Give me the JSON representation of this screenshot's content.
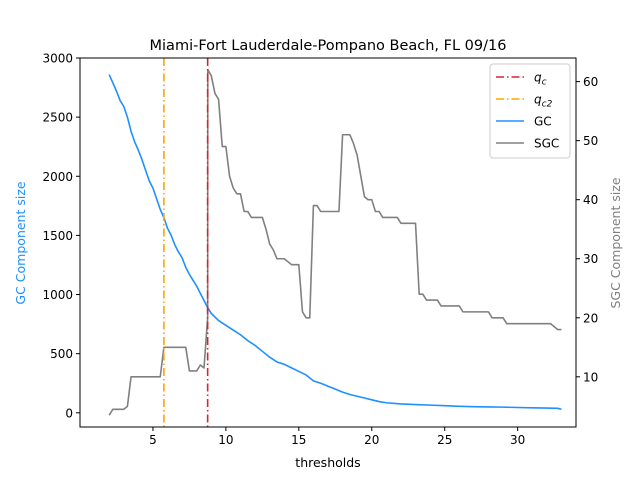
{
  "chart_data": {
    "type": "line",
    "title": "Miami-Fort Lauderdale-Pompano Beach, FL 09/16",
    "xlabel": "thresholds",
    "ylabel_left": "GC Component size",
    "ylabel_right": "SGC Component size",
    "xlim": [
      0,
      34
    ],
    "ylim_left": [
      -120,
      3000
    ],
    "ylim_right": [
      1.5,
      64
    ],
    "xticks": [
      5,
      10,
      15,
      20,
      25,
      30
    ],
    "yticks_left": [
      0,
      500,
      1000,
      1500,
      2000,
      2500,
      3000
    ],
    "yticks_right": [
      10,
      20,
      30,
      40,
      50,
      60
    ],
    "legend_position": "top-right",
    "colors": {
      "qc": "#d62728",
      "qc2": "#ffa500",
      "gc": "#1e90ff",
      "sgc": "#808080",
      "left_label": "#1e90ff",
      "right_label": "#808080"
    },
    "vlines": [
      {
        "name": "q_c",
        "label_main": "q",
        "label_sub": "c",
        "x": 8.75,
        "color": "#d62728"
      },
      {
        "name": "q_c2",
        "label_main": "q",
        "label_sub": "c2",
        "x": 5.75,
        "color": "#ffa500"
      }
    ],
    "series": [
      {
        "name": "GC",
        "axis": "left",
        "color": "#1e90ff",
        "x": [
          2,
          2.25,
          2.5,
          2.75,
          3,
          3.25,
          3.5,
          3.75,
          4,
          4.25,
          4.5,
          4.75,
          5,
          5.25,
          5.5,
          5.75,
          6,
          6.25,
          6.5,
          6.75,
          7,
          7.25,
          7.5,
          7.75,
          8,
          8.25,
          8.5,
          8.75,
          9,
          9.25,
          9.5,
          9.75,
          10,
          10.5,
          11,
          11.5,
          12,
          12.5,
          13,
          13.5,
          14,
          14.5,
          15,
          15.5,
          16,
          16.5,
          17,
          17.5,
          18,
          18.5,
          19,
          19.5,
          20,
          20.5,
          21,
          22,
          23,
          24,
          25,
          26,
          27,
          28,
          29,
          30,
          31,
          32,
          32.75,
          33
        ],
        "y": [
          2860,
          2790,
          2720,
          2640,
          2590,
          2500,
          2380,
          2290,
          2220,
          2140,
          2050,
          1960,
          1900,
          1810,
          1720,
          1650,
          1560,
          1500,
          1420,
          1360,
          1310,
          1230,
          1170,
          1120,
          1070,
          1010,
          950,
          890,
          840,
          810,
          780,
          760,
          740,
          700,
          660,
          610,
          570,
          520,
          470,
          430,
          410,
          380,
          350,
          320,
          270,
          250,
          225,
          200,
          175,
          155,
          140,
          125,
          110,
          95,
          85,
          75,
          70,
          65,
          60,
          55,
          52,
          50,
          48,
          45,
          42,
          40,
          38,
          30
        ]
      },
      {
        "name": "SGC",
        "axis": "right",
        "color": "#808080",
        "x": [
          2,
          2.25,
          3,
          3.25,
          3.5,
          5.5,
          5.75,
          7.25,
          7.5,
          8,
          8.25,
          8.5,
          8.75,
          8.76,
          9,
          9.25,
          9.5,
          9.75,
          10,
          10.25,
          10.5,
          10.75,
          11,
          11.25,
          11.5,
          11.75,
          12,
          12.5,
          12.75,
          13,
          13.25,
          13.5,
          14,
          14.25,
          14.5,
          15,
          15.25,
          15.5,
          15.75,
          16,
          16.25,
          16.5,
          17.75,
          18,
          18.5,
          18.75,
          19,
          19.25,
          19.5,
          19.75,
          20,
          20.25,
          20.5,
          20.75,
          21,
          21.75,
          22,
          23,
          23.25,
          23.5,
          23.75,
          24,
          24.5,
          24.75,
          25,
          26,
          26.25,
          28,
          28.25,
          29,
          29.25,
          32,
          32.25,
          32.5,
          32.75,
          33
        ],
        "y": [
          3.5,
          4.5,
          4.5,
          5,
          10,
          10,
          15,
          15,
          11,
          11,
          12,
          11.5,
          20,
          62,
          61,
          58,
          57,
          49,
          49,
          44,
          42,
          41,
          41,
          38,
          38,
          37,
          37,
          37,
          35,
          32.5,
          31.5,
          30,
          30,
          29.5,
          29,
          29,
          21,
          20,
          20,
          39,
          39,
          38,
          38,
          51,
          51,
          49.5,
          47.5,
          44,
          40.5,
          40,
          40,
          38,
          38,
          37,
          37,
          37,
          36,
          36,
          24,
          24,
          23,
          23,
          23,
          22,
          22,
          22,
          21,
          21,
          20,
          20,
          19,
          19,
          19,
          18.5,
          18,
          18
        ]
      }
    ],
    "legend": [
      {
        "key": "qc",
        "label_main": "q",
        "label_sub": "c",
        "style": "dashdot",
        "color": "#d62728"
      },
      {
        "key": "qc2",
        "label_main": "q",
        "label_sub": "c2",
        "style": "dashdot",
        "color": "#ffa500"
      },
      {
        "key": "gc",
        "label_main": "GC",
        "label_sub": "",
        "style": "solid",
        "color": "#1e90ff"
      },
      {
        "key": "sgc",
        "label_main": "SGC",
        "label_sub": "",
        "style": "solid",
        "color": "#808080"
      }
    ]
  }
}
